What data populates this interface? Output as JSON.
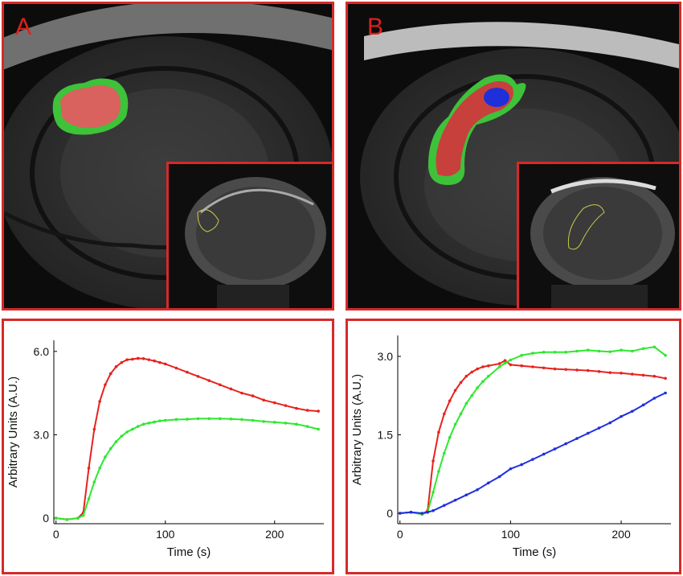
{
  "panels": {
    "a": {
      "letter": "A"
    },
    "b": {
      "letter": "B"
    }
  },
  "colors": {
    "frame": "#d62a2a",
    "red_series": "#e8221e",
    "green_series": "#2ee82e",
    "blue_series": "#1f2ee0"
  },
  "chart_data": [
    {
      "type": "line",
      "panel": "A",
      "xlabel": "Time (s)",
      "ylabel": "Arbitrary Units (A.U.)",
      "xlim": [
        -2,
        245
      ],
      "ylim": [
        -0.2,
        6.4
      ],
      "xticks": [
        0,
        100,
        200
      ],
      "xtick_labels": [
        "0",
        "100",
        "200"
      ],
      "yticks": [
        0,
        3.0,
        6.0
      ],
      "ytick_labels": [
        "0",
        "3.0",
        "6.0"
      ],
      "series": [
        {
          "color": "#e8221e",
          "x": [
            0,
            10,
            20,
            25,
            30,
            35,
            40,
            45,
            50,
            55,
            60,
            65,
            70,
            75,
            80,
            85,
            90,
            95,
            100,
            110,
            120,
            130,
            140,
            150,
            160,
            170,
            180,
            190,
            200,
            210,
            220,
            230,
            240
          ],
          "y": [
            0,
            -0.05,
            0,
            0.2,
            1.8,
            3.2,
            4.2,
            4.8,
            5.2,
            5.45,
            5.6,
            5.7,
            5.72,
            5.75,
            5.74,
            5.7,
            5.66,
            5.6,
            5.55,
            5.4,
            5.25,
            5.1,
            4.95,
            4.8,
            4.65,
            4.5,
            4.4,
            4.25,
            4.15,
            4.05,
            3.95,
            3.88,
            3.85
          ]
        },
        {
          "color": "#2ee82e",
          "x": [
            0,
            10,
            20,
            25,
            30,
            35,
            40,
            45,
            50,
            55,
            60,
            65,
            70,
            75,
            80,
            85,
            90,
            95,
            100,
            110,
            120,
            130,
            140,
            150,
            160,
            170,
            180,
            190,
            200,
            210,
            220,
            230,
            240
          ],
          "y": [
            0,
            -0.05,
            0,
            0.1,
            0.7,
            1.3,
            1.8,
            2.2,
            2.5,
            2.75,
            2.95,
            3.1,
            3.2,
            3.3,
            3.38,
            3.42,
            3.46,
            3.5,
            3.52,
            3.55,
            3.56,
            3.58,
            3.58,
            3.58,
            3.57,
            3.55,
            3.52,
            3.48,
            3.45,
            3.42,
            3.38,
            3.3,
            3.2
          ]
        }
      ]
    },
    {
      "type": "line",
      "panel": "B",
      "xlabel": "Time (s)",
      "ylabel": "Arbitrary Units (A.U.)",
      "xlim": [
        -2,
        245
      ],
      "ylim": [
        -0.2,
        3.4
      ],
      "xticks": [
        0,
        100,
        200
      ],
      "xtick_labels": [
        "0",
        "100",
        "200"
      ],
      "yticks": [
        0,
        1.5,
        3.0
      ],
      "ytick_labels": [
        "0",
        "1.5",
        "3.0"
      ],
      "series": [
        {
          "color": "#e8221e",
          "x": [
            0,
            10,
            20,
            25,
            30,
            35,
            40,
            45,
            50,
            55,
            60,
            65,
            70,
            75,
            80,
            90,
            95,
            100,
            110,
            120,
            130,
            140,
            150,
            160,
            170,
            180,
            190,
            200,
            210,
            220,
            230,
            240
          ],
          "y": [
            0,
            0.02,
            -0.02,
            0.05,
            1.0,
            1.55,
            1.9,
            2.15,
            2.35,
            2.5,
            2.62,
            2.7,
            2.76,
            2.8,
            2.82,
            2.86,
            2.92,
            2.84,
            2.82,
            2.8,
            2.78,
            2.76,
            2.75,
            2.74,
            2.73,
            2.71,
            2.69,
            2.68,
            2.66,
            2.64,
            2.62,
            2.58
          ]
        },
        {
          "color": "#2ee82e",
          "x": [
            0,
            10,
            20,
            25,
            30,
            35,
            40,
            45,
            50,
            55,
            60,
            65,
            70,
            75,
            80,
            90,
            95,
            100,
            110,
            120,
            130,
            140,
            150,
            160,
            170,
            180,
            190,
            200,
            210,
            220,
            230,
            240
          ],
          "y": [
            0,
            0.02,
            -0.02,
            0.02,
            0.4,
            0.8,
            1.15,
            1.45,
            1.7,
            1.9,
            2.1,
            2.25,
            2.4,
            2.52,
            2.62,
            2.8,
            2.87,
            2.93,
            3.02,
            3.06,
            3.08,
            3.08,
            3.08,
            3.1,
            3.12,
            3.1,
            3.09,
            3.12,
            3.1,
            3.15,
            3.18,
            3.02
          ]
        },
        {
          "color": "#1f2ee0",
          "x": [
            0,
            10,
            20,
            25,
            30,
            40,
            50,
            60,
            70,
            80,
            90,
            100,
            110,
            120,
            130,
            140,
            150,
            160,
            170,
            180,
            190,
            200,
            210,
            220,
            230,
            240
          ],
          "y": [
            0,
            0.02,
            0,
            0.02,
            0.05,
            0.15,
            0.25,
            0.35,
            0.45,
            0.58,
            0.7,
            0.85,
            0.93,
            1.03,
            1.13,
            1.23,
            1.33,
            1.43,
            1.53,
            1.63,
            1.73,
            1.85,
            1.95,
            2.07,
            2.2,
            2.3
          ]
        }
      ]
    }
  ]
}
